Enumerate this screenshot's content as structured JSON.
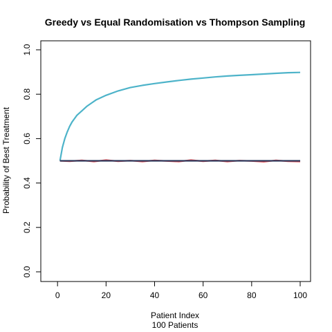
{
  "chart_data": {
    "type": "line",
    "title": "Greedy vs Equal Randomisation vs Thompson Sampling",
    "xlabel": "Patient Index",
    "xlabel_sub": "100 Patients",
    "ylabel": "Probability of Best Treatment",
    "xlim": [
      1,
      100
    ],
    "ylim": [
      0,
      1
    ],
    "xticks": [
      0,
      20,
      40,
      60,
      80,
      100
    ],
    "yticks": [
      0.0,
      0.2,
      0.4,
      0.6,
      0.8,
      1.0
    ],
    "ytick_labels": [
      "0.0",
      "0.2",
      "0.4",
      "0.6",
      "0.8",
      "1.0"
    ],
    "grid": false,
    "series": [
      {
        "color": "#4db3c9",
        "x": [
          1,
          2,
          3,
          4,
          5,
          6,
          7,
          8,
          10,
          12,
          14,
          16,
          18,
          20,
          25,
          30,
          35,
          40,
          45,
          50,
          55,
          60,
          65,
          70,
          75,
          80,
          85,
          90,
          95,
          100
        ],
        "y": [
          0.5,
          0.56,
          0.6,
          0.63,
          0.655,
          0.675,
          0.69,
          0.705,
          0.725,
          0.745,
          0.76,
          0.775,
          0.785,
          0.795,
          0.815,
          0.83,
          0.84,
          0.848,
          0.855,
          0.862,
          0.868,
          0.873,
          0.878,
          0.882,
          0.885,
          0.888,
          0.891,
          0.894,
          0.897,
          0.898
        ]
      },
      {
        "color": "#e0434a",
        "x": [
          1,
          5,
          10,
          15,
          20,
          25,
          30,
          35,
          40,
          45,
          50,
          55,
          60,
          65,
          70,
          75,
          80,
          85,
          90,
          95,
          100
        ],
        "y": [
          0.5,
          0.498,
          0.502,
          0.497,
          0.503,
          0.498,
          0.501,
          0.497,
          0.502,
          0.499,
          0.497,
          0.503,
          0.498,
          0.502,
          0.497,
          0.501,
          0.499,
          0.496,
          0.502,
          0.498,
          0.497
        ]
      },
      {
        "color": "#2e3b5e",
        "x": [
          1,
          100
        ],
        "y": [
          0.5,
          0.5
        ]
      }
    ]
  }
}
